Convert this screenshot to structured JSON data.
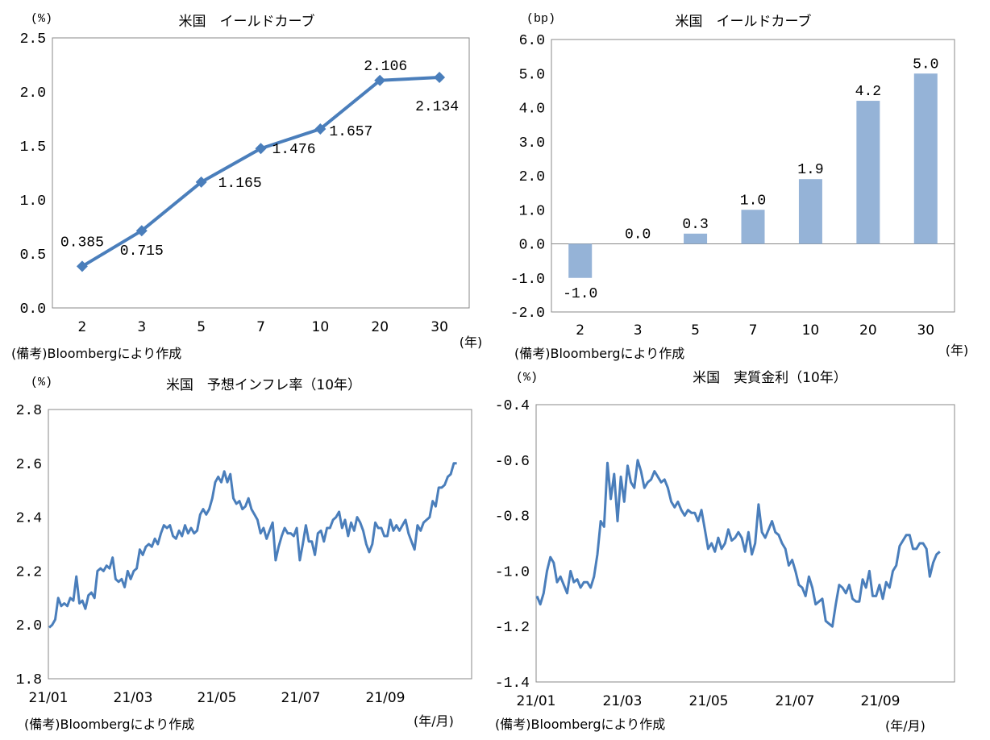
{
  "chart_data": [
    {
      "type": "line",
      "title": "米国　イールドカーブ",
      "unit_label": "(%)",
      "xunit_label": "(年)",
      "note": "(備考)Bloombergにより作成",
      "categories": [
        "2",
        "3",
        "5",
        "7",
        "10",
        "20",
        "30"
      ],
      "values": [
        0.385,
        0.715,
        1.165,
        1.476,
        1.657,
        2.106,
        2.134
      ],
      "data_labels": [
        "0.385",
        "0.715",
        "1.165",
        "1.476",
        "1.657",
        "2.106",
        "2.134"
      ],
      "yticks": [
        "0.0",
        "0.5",
        "1.0",
        "1.5",
        "2.0",
        "2.5"
      ],
      "ylim": [
        0,
        2.5
      ],
      "color": "#4a7ebb"
    },
    {
      "type": "bar",
      "title": "米国　イールドカーブ",
      "unit_label": "(bp)",
      "xunit_label": "(年)",
      "note": "(備考)Bloombergにより作成",
      "categories": [
        "2",
        "3",
        "5",
        "7",
        "10",
        "20",
        "30"
      ],
      "values": [
        -1.0,
        0.0,
        0.3,
        1.0,
        1.9,
        4.2,
        5.0
      ],
      "data_labels": [
        "-1.0",
        "0.0",
        "0.3",
        "1.0",
        "1.9",
        "4.2",
        "5.0"
      ],
      "yticks": [
        "-2.0",
        "-1.0",
        "0.0",
        "1.0",
        "2.0",
        "3.0",
        "4.0",
        "5.0",
        "6.0"
      ],
      "ylim": [
        -2,
        6
      ],
      "color": "#95b3d7"
    },
    {
      "type": "line",
      "title": "米国　予想インフレ率（10年）",
      "unit_label": "(%)",
      "xunit_label": "(年/月)",
      "note": "(備考)Bloombergにより作成",
      "xticks": [
        "21/01",
        "21/03",
        "21/05",
        "21/07",
        "21/09"
      ],
      "yticks": [
        "1.8",
        "2.0",
        "2.2",
        "2.4",
        "2.6",
        "2.8"
      ],
      "ylim": [
        1.8,
        2.8
      ],
      "color": "#4a7ebb",
      "values": [
        1.99,
        2.0,
        2.02,
        2.1,
        2.07,
        2.08,
        2.07,
        2.1,
        2.09,
        2.18,
        2.08,
        2.09,
        2.06,
        2.11,
        2.12,
        2.1,
        2.2,
        2.21,
        2.2,
        2.22,
        2.21,
        2.25,
        2.17,
        2.16,
        2.17,
        2.14,
        2.2,
        2.17,
        2.2,
        2.21,
        2.28,
        2.26,
        2.29,
        2.3,
        2.29,
        2.32,
        2.3,
        2.34,
        2.37,
        2.36,
        2.37,
        2.33,
        2.32,
        2.35,
        2.33,
        2.37,
        2.34,
        2.36,
        2.34,
        2.35,
        2.41,
        2.43,
        2.41,
        2.43,
        2.47,
        2.53,
        2.55,
        2.53,
        2.57,
        2.53,
        2.56,
        2.47,
        2.45,
        2.46,
        2.43,
        2.44,
        2.47,
        2.43,
        2.41,
        2.39,
        2.34,
        2.36,
        2.32,
        2.35,
        2.38,
        2.24,
        2.29,
        2.33,
        2.36,
        2.34,
        2.34,
        2.33,
        2.36,
        2.24,
        2.3,
        2.37,
        2.31,
        2.31,
        2.26,
        2.34,
        2.35,
        2.31,
        2.36,
        2.36,
        2.39,
        2.4,
        2.42,
        2.36,
        2.39,
        2.33,
        2.38,
        2.35,
        2.4,
        2.38,
        2.35,
        2.3,
        2.27,
        2.3,
        2.38,
        2.36,
        2.36,
        2.33,
        2.33,
        2.39,
        2.35,
        2.37,
        2.35,
        2.37,
        2.39,
        2.34,
        2.31,
        2.28,
        2.37,
        2.35,
        2.38,
        2.39,
        2.4,
        2.46,
        2.44,
        2.51,
        2.51,
        2.52,
        2.55,
        2.56,
        2.6,
        2.6
      ]
    },
    {
      "type": "line",
      "title": "米国　実質金利（10年）",
      "unit_label": "(%)",
      "xunit_label": "(年/月)",
      "note": "(備考)Bloombergにより作成",
      "xticks": [
        "21/01",
        "21/03",
        "21/05",
        "21/07",
        "21/09"
      ],
      "yticks": [
        "-1.4",
        "-1.2",
        "-1.0",
        "-0.8",
        "-0.6",
        "-0.4"
      ],
      "ylim": [
        -1.4,
        -0.4
      ],
      "color": "#4a7ebb",
      "values": [
        -1.09,
        -1.12,
        -1.08,
        -1.0,
        -0.95,
        -0.97,
        -1.04,
        -1.02,
        -1.05,
        -1.08,
        -1.0,
        -1.04,
        -1.03,
        -1.06,
        -1.04,
        -1.04,
        -1.06,
        -1.02,
        -0.94,
        -0.82,
        -0.84,
        -0.61,
        -0.74,
        -0.65,
        -0.82,
        -0.66,
        -0.75,
        -0.62,
        -0.68,
        -0.7,
        -0.6,
        -0.64,
        -0.7,
        -0.68,
        -0.67,
        -0.64,
        -0.66,
        -0.68,
        -0.67,
        -0.7,
        -0.75,
        -0.77,
        -0.75,
        -0.78,
        -0.8,
        -0.78,
        -0.79,
        -0.79,
        -0.82,
        -0.78,
        -0.85,
        -0.92,
        -0.9,
        -0.93,
        -0.88,
        -0.92,
        -0.9,
        -0.85,
        -0.89,
        -0.88,
        -0.86,
        -0.88,
        -0.93,
        -0.86,
        -0.94,
        -0.9,
        -0.76,
        -0.86,
        -0.88,
        -0.85,
        -0.82,
        -0.86,
        -0.87,
        -0.9,
        -0.92,
        -0.98,
        -0.96,
        -1.0,
        -1.05,
        -1.06,
        -1.09,
        -1.02,
        -1.06,
        -1.12,
        -1.11,
        -1.1,
        -1.18,
        -1.19,
        -1.2,
        -1.12,
        -1.05,
        -1.06,
        -1.08,
        -1.05,
        -1.1,
        -1.11,
        -1.11,
        -1.03,
        -1.06,
        -1.0,
        -1.09,
        -1.09,
        -1.05,
        -1.1,
        -1.04,
        -1.06,
        -1.0,
        -0.98,
        -0.91,
        -0.89,
        -0.87,
        -0.87,
        -0.92,
        -0.92,
        -0.9,
        -0.9,
        -0.92,
        -1.02,
        -0.97,
        -0.94,
        -0.93
      ]
    }
  ]
}
